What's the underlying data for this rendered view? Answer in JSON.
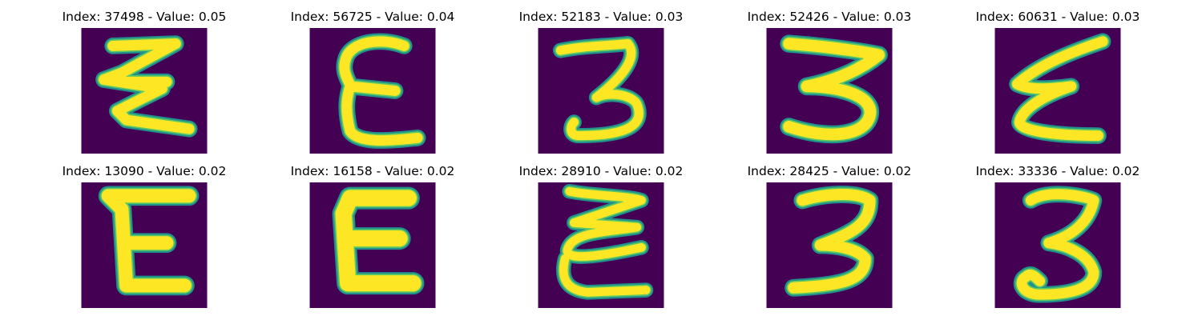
{
  "colors": {
    "background": "#440154",
    "stroke_edge": "#21918c",
    "stroke_mid": "#5ec962",
    "stroke_core": "#fde725"
  },
  "panels": [
    {
      "title": "Index: 37498 - Value: 0.05",
      "glyph": "zigzag-e"
    },
    {
      "title": "Index: 56725 - Value: 0.04",
      "glyph": "curly-e"
    },
    {
      "title": "Index: 52183 - Value: 0.03",
      "glyph": "three"
    },
    {
      "title": "Index: 52426 - Value: 0.03",
      "glyph": "three-wide"
    },
    {
      "title": "Index: 60631 - Value: 0.03",
      "glyph": "slanted-e"
    },
    {
      "title": "Index: 13090 - Value: 0.02",
      "glyph": "block-e"
    },
    {
      "title": "Index: 16158 - Value: 0.02",
      "glyph": "bold-e"
    },
    {
      "title": "Index: 28910 - Value: 0.02",
      "glyph": "loopy-e"
    },
    {
      "title": "Index: 28425 - Value: 0.02",
      "glyph": "three-narrow"
    },
    {
      "title": "Index: 33336 - Value: 0.02",
      "glyph": "three-loop"
    }
  ]
}
